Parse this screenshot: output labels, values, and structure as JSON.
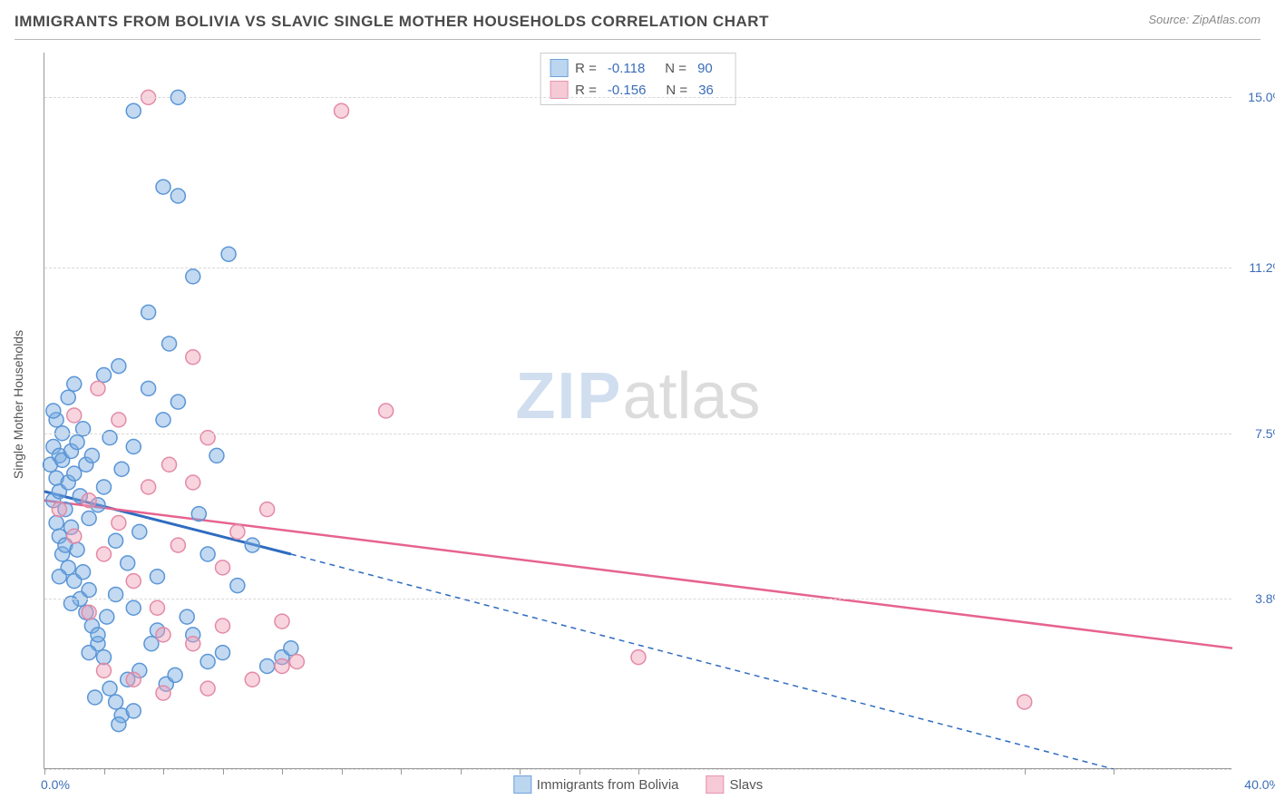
{
  "header": {
    "title": "IMMIGRANTS FROM BOLIVIA VS SLAVIC SINGLE MOTHER HOUSEHOLDS CORRELATION CHART",
    "source": "Source: ZipAtlas.com"
  },
  "chart": {
    "type": "scatter",
    "ylabel": "Single Mother Households",
    "xlim": [
      0,
      40
    ],
    "ylim": [
      0,
      16
    ],
    "x_tick_positions": [
      0,
      2,
      4,
      6,
      8,
      10,
      12,
      14,
      16,
      18,
      20,
      33,
      36
    ],
    "x_axis_labels": [
      {
        "value": 0,
        "text": "0.0%"
      },
      {
        "value": 40,
        "text": "40.0%"
      }
    ],
    "y_gridlines": [
      0,
      3.8,
      7.5,
      11.2,
      15.0
    ],
    "y_axis_labels": [
      {
        "value": 3.8,
        "text": "3.8%"
      },
      {
        "value": 7.5,
        "text": "7.5%"
      },
      {
        "value": 11.2,
        "text": "11.2%"
      },
      {
        "value": 15.0,
        "text": "15.0%"
      }
    ],
    "background_color": "#ffffff",
    "grid_color": "#d8d8d8",
    "axis_color": "#999999",
    "marker_radius": 8,
    "marker_stroke_width": 1.5,
    "series": [
      {
        "name": "Immigrants from Bolivia",
        "color_fill": "rgba(120,170,225,0.45)",
        "color_stroke": "#5a95d6",
        "swatch_fill": "#bcd6f0",
        "swatch_stroke": "#6fa3db",
        "R": "-0.118",
        "N": "90",
        "trend": {
          "x1": 0,
          "y1": 6.2,
          "x2": 8.3,
          "y2": 4.8,
          "x2_ext": 36,
          "y2_ext": 0.0,
          "color": "#2f6cc0",
          "width": 3
        },
        "points": [
          [
            0.2,
            6.8
          ],
          [
            0.3,
            7.2
          ],
          [
            0.4,
            6.5
          ],
          [
            0.3,
            6.0
          ],
          [
            0.5,
            7.0
          ],
          [
            0.4,
            5.5
          ],
          [
            0.6,
            7.5
          ],
          [
            0.5,
            6.2
          ],
          [
            0.7,
            5.8
          ],
          [
            0.6,
            6.9
          ],
          [
            0.4,
            7.8
          ],
          [
            0.8,
            6.4
          ],
          [
            0.5,
            5.2
          ],
          [
            0.9,
            7.1
          ],
          [
            0.6,
            4.8
          ],
          [
            1.0,
            6.6
          ],
          [
            0.7,
            5.0
          ],
          [
            1.1,
            7.3
          ],
          [
            0.8,
            4.5
          ],
          [
            1.2,
            6.1
          ],
          [
            0.9,
            5.4
          ],
          [
            1.3,
            7.6
          ],
          [
            1.0,
            4.2
          ],
          [
            1.4,
            6.8
          ],
          [
            1.1,
            4.9
          ],
          [
            1.5,
            5.6
          ],
          [
            1.2,
            3.8
          ],
          [
            1.6,
            7.0
          ],
          [
            1.3,
            4.4
          ],
          [
            1.8,
            5.9
          ],
          [
            1.4,
            3.5
          ],
          [
            2.0,
            6.3
          ],
          [
            1.5,
            4.0
          ],
          [
            2.2,
            7.4
          ],
          [
            1.6,
            3.2
          ],
          [
            2.4,
            5.1
          ],
          [
            1.8,
            2.8
          ],
          [
            2.6,
            6.7
          ],
          [
            2.0,
            2.5
          ],
          [
            2.8,
            4.6
          ],
          [
            2.2,
            1.8
          ],
          [
            3.0,
            7.2
          ],
          [
            2.4,
            1.5
          ],
          [
            3.2,
            5.3
          ],
          [
            2.6,
            1.2
          ],
          [
            3.5,
            8.5
          ],
          [
            2.8,
            2.0
          ],
          [
            3.8,
            4.3
          ],
          [
            3.0,
            3.6
          ],
          [
            4.0,
            7.8
          ],
          [
            3.2,
            2.2
          ],
          [
            4.2,
            9.5
          ],
          [
            3.5,
            10.2
          ],
          [
            4.0,
            13.0
          ],
          [
            4.5,
            12.8
          ],
          [
            5.0,
            11.0
          ],
          [
            5.5,
            2.4
          ],
          [
            2.5,
            1.0
          ],
          [
            3.0,
            1.3
          ],
          [
            1.7,
            1.6
          ],
          [
            4.5,
            8.2
          ],
          [
            5.0,
            3.0
          ],
          [
            5.5,
            4.8
          ],
          [
            6.0,
            2.6
          ],
          [
            6.2,
            11.5
          ],
          [
            2.0,
            8.8
          ],
          [
            2.5,
            9.0
          ],
          [
            0.3,
            8.0
          ],
          [
            0.8,
            8.3
          ],
          [
            1.0,
            8.6
          ],
          [
            4.5,
            15.0
          ],
          [
            3.0,
            14.7
          ],
          [
            4.8,
            3.4
          ],
          [
            5.2,
            5.7
          ],
          [
            5.8,
            7.0
          ],
          [
            6.5,
            4.1
          ],
          [
            7.0,
            5.0
          ],
          [
            7.5,
            2.3
          ],
          [
            8.0,
            2.5
          ],
          [
            8.3,
            2.7
          ],
          [
            1.5,
            2.6
          ],
          [
            1.8,
            3.0
          ],
          [
            2.1,
            3.4
          ],
          [
            2.4,
            3.9
          ],
          [
            3.6,
            2.8
          ],
          [
            3.8,
            3.1
          ],
          [
            4.1,
            1.9
          ],
          [
            4.4,
            2.1
          ],
          [
            0.5,
            4.3
          ],
          [
            0.9,
            3.7
          ]
        ]
      },
      {
        "name": "Slavs",
        "color_fill": "rgba(240,160,185,0.45)",
        "color_stroke": "#e38aa6",
        "swatch_fill": "#f5c9d6",
        "swatch_stroke": "#e994af",
        "R": "-0.156",
        "N": "36",
        "trend": {
          "x1": 0,
          "y1": 6.0,
          "x2": 40,
          "y2": 2.7,
          "color": "#e6638f",
          "width": 2.5
        },
        "points": [
          [
            0.5,
            5.8
          ],
          [
            1.0,
            5.2
          ],
          [
            1.5,
            6.0
          ],
          [
            2.0,
            4.8
          ],
          [
            2.5,
            5.5
          ],
          [
            3.0,
            4.2
          ],
          [
            3.5,
            6.3
          ],
          [
            4.0,
            3.0
          ],
          [
            4.5,
            5.0
          ],
          [
            5.0,
            9.2
          ],
          [
            5.5,
            7.4
          ],
          [
            6.0,
            4.5
          ],
          [
            6.5,
            5.3
          ],
          [
            7.0,
            2.0
          ],
          [
            7.5,
            5.8
          ],
          [
            8.0,
            2.3
          ],
          [
            8.5,
            2.4
          ],
          [
            3.5,
            15.0
          ],
          [
            10.0,
            14.7
          ],
          [
            3.0,
            2.0
          ],
          [
            4.0,
            1.7
          ],
          [
            5.0,
            2.8
          ],
          [
            6.0,
            3.2
          ],
          [
            1.5,
            3.5
          ],
          [
            2.0,
            2.2
          ],
          [
            2.5,
            7.8
          ],
          [
            3.8,
            3.6
          ],
          [
            4.2,
            6.8
          ],
          [
            11.5,
            8.0
          ],
          [
            8.0,
            3.3
          ],
          [
            20.0,
            2.5
          ],
          [
            33.0,
            1.5
          ],
          [
            5.5,
            1.8
          ],
          [
            1.0,
            7.9
          ],
          [
            1.8,
            8.5
          ],
          [
            5.0,
            6.4
          ]
        ]
      }
    ],
    "legend_bottom": [
      {
        "label": "Immigrants from Bolivia",
        "fill": "#bcd6f0",
        "stroke": "#6fa3db"
      },
      {
        "label": "Slavs",
        "fill": "#f5c9d6",
        "stroke": "#e994af"
      }
    ],
    "watermark": {
      "part1": "ZIP",
      "part2": "atlas"
    }
  }
}
